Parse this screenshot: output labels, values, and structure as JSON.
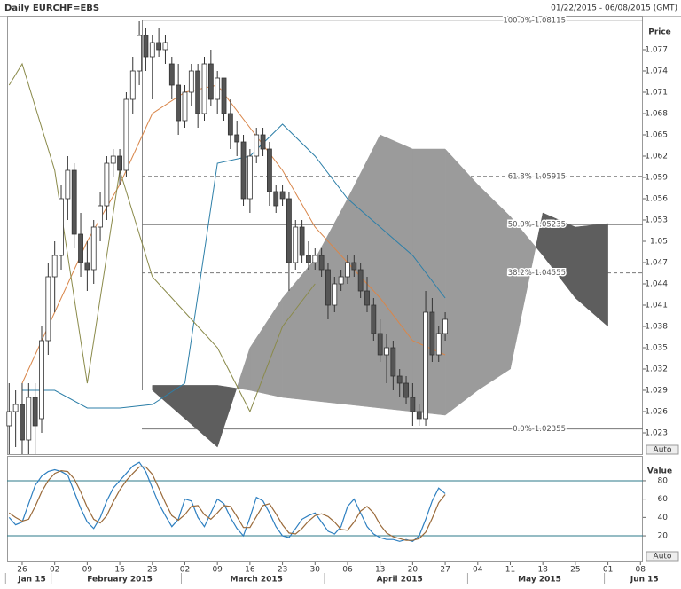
{
  "header": {
    "title": "Daily EURCHF=EBS",
    "date_range": "01/22/2015 - 06/08/2015 (GMT)"
  },
  "chart_data": [
    {
      "type": "candlestick",
      "y_label": "Price",
      "button": "Auto",
      "ylim": [
        1.02,
        1.08175
      ],
      "yticks": [
        1.077,
        1.074,
        1.071,
        1.068,
        1.065,
        1.062,
        1.059,
        1.056,
        1.053,
        1.05,
        1.047,
        1.044,
        1.041,
        1.038,
        1.035,
        1.032,
        1.029,
        1.026,
        1.023
      ],
      "candles": {
        "x": [
          "2015-01-22",
          "2015-01-23",
          "2015-01-26",
          "2015-01-27",
          "2015-01-28",
          "2015-01-29",
          "2015-01-30",
          "2015-02-02",
          "2015-02-03",
          "2015-02-04",
          "2015-02-05",
          "2015-02-06",
          "2015-02-09",
          "2015-02-10",
          "2015-02-11",
          "2015-02-12",
          "2015-02-13",
          "2015-02-16",
          "2015-02-17",
          "2015-02-18",
          "2015-02-19",
          "2015-02-20",
          "2015-02-23",
          "2015-02-24",
          "2015-02-25",
          "2015-02-26",
          "2015-02-27",
          "2015-03-02",
          "2015-03-03",
          "2015-03-04",
          "2015-03-05",
          "2015-03-06",
          "2015-03-09",
          "2015-03-10",
          "2015-03-11",
          "2015-03-12",
          "2015-03-13",
          "2015-03-16",
          "2015-03-17",
          "2015-03-18",
          "2015-03-19",
          "2015-03-20",
          "2015-03-23",
          "2015-03-24",
          "2015-03-25",
          "2015-03-26",
          "2015-03-27",
          "2015-03-30",
          "2015-03-31",
          "2015-04-01",
          "2015-04-02",
          "2015-04-03",
          "2015-04-06",
          "2015-04-07",
          "2015-04-08",
          "2015-04-09",
          "2015-04-10",
          "2015-04-13",
          "2015-04-14",
          "2015-04-15",
          "2015-04-16",
          "2015-04-17",
          "2015-04-20",
          "2015-04-21",
          "2015-04-22",
          "2015-04-23",
          "2015-04-24",
          "2015-04-27"
        ],
        "open": [
          1.024,
          1.026,
          1.027,
          1.022,
          1.028,
          1.025,
          1.036,
          1.045,
          1.048,
          1.056,
          1.06,
          1.051,
          1.047,
          1.046,
          1.052,
          1.055,
          1.061,
          1.062,
          1.06,
          1.07,
          1.074,
          1.079,
          1.076,
          1.078,
          1.077,
          1.075,
          1.072,
          1.067,
          1.071,
          1.074,
          1.068,
          1.075,
          1.07,
          1.073,
          1.068,
          1.065,
          1.064,
          1.056,
          1.062,
          1.065,
          1.063,
          1.057,
          1.057,
          1.056,
          1.047,
          1.052,
          1.048,
          1.047,
          1.048,
          1.046,
          1.041,
          1.044,
          1.045,
          1.047,
          1.046,
          1.043,
          1.041,
          1.037,
          1.034,
          1.035,
          1.031,
          1.03,
          1.028,
          1.026,
          1.025,
          1.04,
          1.034,
          1.037
        ],
        "high": [
          1.03,
          1.029,
          1.03,
          1.03,
          1.03,
          1.038,
          1.047,
          1.05,
          1.058,
          1.062,
          1.061,
          1.054,
          1.05,
          1.053,
          1.057,
          1.062,
          1.063,
          1.063,
          1.071,
          1.076,
          1.081,
          1.08,
          1.079,
          1.08,
          1.079,
          1.076,
          1.075,
          1.072,
          1.075,
          1.075,
          1.076,
          1.077,
          1.074,
          1.073,
          1.07,
          1.067,
          1.065,
          1.063,
          1.066,
          1.066,
          1.064,
          1.058,
          1.058,
          1.057,
          1.053,
          1.053,
          1.05,
          1.049,
          1.049,
          1.047,
          1.045,
          1.046,
          1.048,
          1.048,
          1.047,
          1.045,
          1.042,
          1.039,
          1.037,
          1.036,
          1.032,
          1.031,
          1.03,
          1.027,
          1.043,
          1.042,
          1.038,
          1.04
        ],
        "low": [
          1.02,
          1.021,
          1.02,
          1.02,
          1.02,
          1.023,
          1.034,
          1.04,
          1.046,
          1.053,
          1.049,
          1.045,
          1.043,
          1.044,
          1.05,
          1.053,
          1.059,
          1.058,
          1.059,
          1.068,
          1.072,
          1.074,
          1.07,
          1.076,
          1.075,
          1.07,
          1.065,
          1.066,
          1.069,
          1.066,
          1.067,
          1.069,
          1.068,
          1.067,
          1.063,
          1.062,
          1.055,
          1.054,
          1.061,
          1.062,
          1.055,
          1.054,
          1.055,
          1.043,
          1.046,
          1.047,
          1.046,
          1.046,
          1.045,
          1.039,
          1.04,
          1.043,
          1.044,
          1.045,
          1.042,
          1.04,
          1.036,
          1.033,
          1.03,
          1.029,
          1.028,
          1.027,
          1.024,
          1.024,
          1.024,
          1.033,
          1.033,
          1.036
        ],
        "close": [
          1.026,
          1.027,
          1.022,
          1.028,
          1.024,
          1.036,
          1.045,
          1.048,
          1.056,
          1.06,
          1.051,
          1.047,
          1.046,
          1.052,
          1.055,
          1.061,
          1.062,
          1.06,
          1.07,
          1.074,
          1.079,
          1.076,
          1.078,
          1.077,
          1.078,
          1.072,
          1.067,
          1.071,
          1.074,
          1.068,
          1.075,
          1.07,
          1.073,
          1.068,
          1.065,
          1.064,
          1.056,
          1.062,
          1.065,
          1.063,
          1.057,
          1.055,
          1.056,
          1.047,
          1.052,
          1.048,
          1.047,
          1.048,
          1.046,
          1.041,
          1.044,
          1.045,
          1.047,
          1.046,
          1.043,
          1.041,
          1.037,
          1.034,
          1.035,
          1.031,
          1.03,
          1.028,
          1.026,
          1.025,
          1.04,
          1.034,
          1.037,
          1.039
        ],
        "up_color": "#ffffff",
        "down_color": "#555555",
        "edge_color": "#333333"
      },
      "cloud": {
        "x": [
          "2015-02-23",
          "2015-03-02",
          "2015-03-09",
          "2015-03-16",
          "2015-03-23",
          "2015-03-30",
          "2015-04-06",
          "2015-04-13",
          "2015-04-20",
          "2015-04-27",
          "2015-05-04",
          "2015-05-11",
          "2015-05-18",
          "2015-05-25",
          "2015-06-01"
        ],
        "span_a": [
          1.029,
          1.025,
          1.021,
          1.035,
          1.042,
          1.0475,
          1.056,
          1.065,
          1.063,
          1.063,
          1.058,
          1.0535,
          1.048,
          1.042,
          1.038
        ],
        "span_b": [
          1.0297,
          1.0297,
          1.0297,
          1.029,
          1.028,
          1.0275,
          1.027,
          1.0265,
          1.026,
          1.0255,
          1.029,
          1.032,
          1.054,
          1.052,
          1.0525
        ],
        "colors": [
          "#9b9b9b",
          "#5e5e5e"
        ]
      },
      "lines": [
        {
          "color": "#2d7fa8",
          "x": [
            "2015-01-26",
            "2015-02-02",
            "2015-02-09",
            "2015-02-16",
            "2015-02-23",
            "2015-03-02",
            "2015-03-09",
            "2015-03-16",
            "2015-03-23",
            "2015-03-30",
            "2015-04-06",
            "2015-04-13",
            "2015-04-20",
            "2015-04-27"
          ],
          "values": [
            1.029,
            1.029,
            1.0265,
            1.0265,
            1.027,
            1.03,
            1.061,
            1.062,
            1.0665,
            1.062,
            1.056,
            1.052,
            1.048,
            1.042
          ]
        },
        {
          "color": "#d9864a",
          "x": [
            "2015-01-26",
            "2015-02-02",
            "2015-02-09",
            "2015-02-16",
            "2015-02-23",
            "2015-03-02",
            "2015-03-09",
            "2015-03-16",
            "2015-03-23",
            "2015-03-30",
            "2015-04-06",
            "2015-04-13",
            "2015-04-20",
            "2015-04-27"
          ],
          "values": [
            1.03,
            1.04,
            1.05,
            1.058,
            1.068,
            1.071,
            1.072,
            1.066,
            1.06,
            1.052,
            1.047,
            1.042,
            1.036,
            1.034
          ]
        },
        {
          "color": "#8a8a4a",
          "x": [
            "2015-01-22",
            "2015-01-26",
            "2015-02-02",
            "2015-02-09",
            "2015-02-16",
            "2015-02-23",
            "2015-03-02",
            "2015-03-09",
            "2015-03-16",
            "2015-03-23",
            "2015-03-30"
          ],
          "values": [
            1.072,
            1.075,
            1.06,
            1.03,
            1.06,
            1.045,
            1.04,
            1.035,
            1.026,
            1.038,
            1.044
          ]
        }
      ],
      "fib_levels": [
        {
          "value": 1.08115,
          "label": "100.0%-1.08115",
          "style": "solid"
        },
        {
          "value": 1.05915,
          "label": "61.8%-1.05915",
          "style": "dashed"
        },
        {
          "value": 1.05235,
          "label": "50.0%-1.05235",
          "style": "solid"
        },
        {
          "value": 1.04555,
          "label": "38.2%-1.04555",
          "style": "dashed"
        },
        {
          "value": 1.02355,
          "label": "0.0%-1.02355",
          "style": "solid"
        }
      ]
    },
    {
      "type": "line",
      "y_label": "Value",
      "button": "Auto",
      "ylim": [
        -7,
        107
      ],
      "yticks": [
        80,
        60,
        40,
        20
      ],
      "levels": [
        80,
        20
      ],
      "level_color": "#2b7a8a",
      "x": [
        "2015-01-22",
        "2015-01-23",
        "2015-01-26",
        "2015-01-27",
        "2015-01-28",
        "2015-01-29",
        "2015-01-30",
        "2015-02-02",
        "2015-02-03",
        "2015-02-04",
        "2015-02-05",
        "2015-02-06",
        "2015-02-09",
        "2015-02-10",
        "2015-02-11",
        "2015-02-12",
        "2015-02-13",
        "2015-02-16",
        "2015-02-17",
        "2015-02-18",
        "2015-02-19",
        "2015-02-20",
        "2015-02-23",
        "2015-02-24",
        "2015-02-25",
        "2015-02-26",
        "2015-02-27",
        "2015-03-02",
        "2015-03-03",
        "2015-03-04",
        "2015-03-05",
        "2015-03-06",
        "2015-03-09",
        "2015-03-10",
        "2015-03-11",
        "2015-03-12",
        "2015-03-13",
        "2015-03-16",
        "2015-03-17",
        "2015-03-18",
        "2015-03-19",
        "2015-03-20",
        "2015-03-23",
        "2015-03-24",
        "2015-03-25",
        "2015-03-26",
        "2015-03-27",
        "2015-03-30",
        "2015-03-31",
        "2015-04-01",
        "2015-04-02",
        "2015-04-03",
        "2015-04-06",
        "2015-04-07",
        "2015-04-08",
        "2015-04-09",
        "2015-04-10",
        "2015-04-13",
        "2015-04-14",
        "2015-04-15",
        "2015-04-16",
        "2015-04-17",
        "2015-04-20",
        "2015-04-21",
        "2015-04-22",
        "2015-04-23",
        "2015-04-24",
        "2015-04-27"
      ],
      "series": [
        {
          "color": "#2d7fc0",
          "values": [
            40,
            32,
            35,
            55,
            75,
            85,
            90,
            92,
            90,
            86,
            68,
            50,
            35,
            28,
            40,
            58,
            72,
            80,
            88,
            96,
            100,
            90,
            72,
            55,
            42,
            30,
            38,
            60,
            58,
            40,
            30,
            45,
            60,
            55,
            40,
            28,
            20,
            40,
            62,
            58,
            45,
            30,
            20,
            18,
            28,
            38,
            42,
            45,
            35,
            25,
            22,
            30,
            52,
            60,
            45,
            30,
            22,
            18,
            16,
            16,
            14,
            16,
            14,
            20,
            38,
            58,
            72,
            66
          ]
        },
        {
          "color": "#9a6a3a",
          "values": [
            45,
            40,
            36,
            38,
            52,
            68,
            80,
            88,
            91,
            90,
            82,
            68,
            51,
            38,
            34,
            42,
            57,
            70,
            80,
            88,
            95,
            95,
            87,
            72,
            56,
            42,
            37,
            43,
            52,
            53,
            43,
            38,
            45,
            53,
            52,
            41,
            29,
            29,
            41,
            53,
            55,
            44,
            32,
            23,
            22,
            28,
            36,
            42,
            44,
            41,
            35,
            27,
            26,
            35,
            47,
            52,
            45,
            32,
            23,
            19,
            17,
            15,
            15,
            17,
            24,
            39,
            56,
            65
          ]
        }
      ],
      "xticks": [
        {
          "value": "2015-01-26",
          "label": "26"
        },
        {
          "value": "2015-02-02",
          "label": "02"
        },
        {
          "value": "2015-02-09",
          "label": "09"
        },
        {
          "value": "2015-02-16",
          "label": "16"
        },
        {
          "value": "2015-02-23",
          "label": "23"
        },
        {
          "value": "2015-03-02",
          "label": "02"
        },
        {
          "value": "2015-03-09",
          "label": "09"
        },
        {
          "value": "2015-03-16",
          "label": "16"
        },
        {
          "value": "2015-03-23",
          "label": "23"
        },
        {
          "value": "2015-03-30",
          "label": "30"
        },
        {
          "value": "2015-04-06",
          "label": "06"
        },
        {
          "value": "2015-04-13",
          "label": "13"
        },
        {
          "value": "2015-04-20",
          "label": "20"
        },
        {
          "value": "2015-04-27",
          "label": "27"
        },
        {
          "value": "2015-05-04",
          "label": "04"
        },
        {
          "value": "2015-05-11",
          "label": "11"
        },
        {
          "value": "2015-05-18",
          "label": "18"
        },
        {
          "value": "2015-05-25",
          "label": "25"
        },
        {
          "value": "2015-06-01",
          "label": "01"
        },
        {
          "value": "2015-06-08",
          "label": "08"
        }
      ],
      "period_labels": [
        {
          "value": "2015-01-22",
          "label": "Jan 15"
        },
        {
          "value": "2015-02-02",
          "label": "February 2015"
        },
        {
          "value": "2015-03-02",
          "label": "March 2015"
        },
        {
          "value": "2015-04-01",
          "label": "April 2015"
        },
        {
          "value": "2015-05-01",
          "label": "May 2015"
        },
        {
          "value": "2015-06-01",
          "label": "Jun 15"
        }
      ]
    }
  ]
}
